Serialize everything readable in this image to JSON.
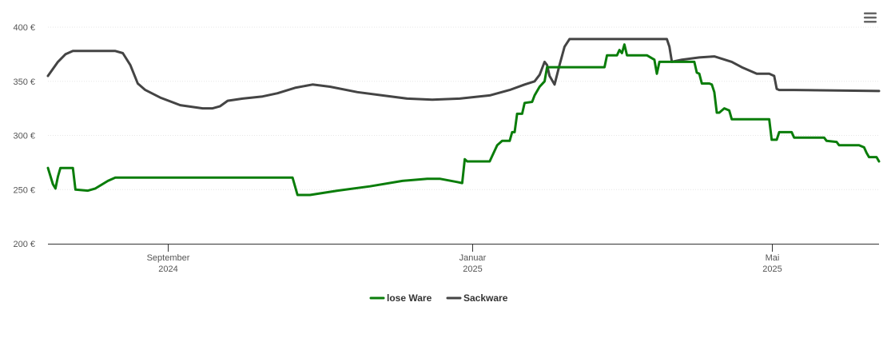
{
  "chart_data": {
    "type": "line",
    "title": "",
    "xlabel": "",
    "ylabel": "",
    "ylim": [
      200,
      400
    ],
    "y_ticks": [
      200,
      250,
      300,
      350,
      400
    ],
    "y_tick_unit": "€",
    "y_tick_labels": [
      "200 €",
      "250 €",
      "300 €",
      "350 €",
      "400 €"
    ],
    "x_range": [
      "2024-07-15",
      "2025-06-13"
    ],
    "x_ticks": [
      {
        "date": "2024-09-01",
        "line1": "September",
        "line2": "2024"
      },
      {
        "date": "2025-01-01",
        "line1": "Januar",
        "line2": "2025"
      },
      {
        "date": "2025-05-01",
        "line1": "Mai",
        "line2": "2025"
      }
    ],
    "grid": true,
    "legend_position": "bottom-center",
    "series": [
      {
        "name": "lose Ware",
        "color": "#0a7d0a",
        "points": [
          [
            "2024-07-15",
            270
          ],
          [
            "2024-07-17",
            255
          ],
          [
            "2024-07-18",
            251
          ],
          [
            "2024-07-19",
            262
          ],
          [
            "2024-07-20",
            270
          ],
          [
            "2024-07-25",
            270
          ],
          [
            "2024-07-26",
            250
          ],
          [
            "2024-07-31",
            249
          ],
          [
            "2024-08-03",
            251
          ],
          [
            "2024-08-08",
            258
          ],
          [
            "2024-08-11",
            261
          ],
          [
            "2024-10-21",
            261
          ],
          [
            "2024-10-23",
            245
          ],
          [
            "2024-10-28",
            245
          ],
          [
            "2024-11-08",
            249
          ],
          [
            "2024-11-21",
            253
          ],
          [
            "2024-12-04",
            258
          ],
          [
            "2024-12-14",
            260
          ],
          [
            "2024-12-19",
            260
          ],
          [
            "2024-12-26",
            257
          ],
          [
            "2024-12-28",
            256
          ],
          [
            "2024-12-29",
            278
          ],
          [
            "2024-12-30",
            276
          ],
          [
            "2025-01-07",
            276
          ],
          [
            "2025-01-08",
            276
          ],
          [
            "2025-01-09",
            281
          ],
          [
            "2025-01-11",
            291
          ],
          [
            "2025-01-13",
            295
          ],
          [
            "2025-01-16",
            295
          ],
          [
            "2025-01-17",
            303
          ],
          [
            "2025-01-18",
            303
          ],
          [
            "2025-01-19",
            320
          ],
          [
            "2025-01-21",
            320
          ],
          [
            "2025-01-22",
            330
          ],
          [
            "2025-01-25",
            331
          ],
          [
            "2025-01-26",
            337
          ],
          [
            "2025-01-28",
            345
          ],
          [
            "2025-01-30",
            350
          ],
          [
            "2025-01-31",
            363
          ],
          [
            "2025-02-23",
            363
          ],
          [
            "2025-02-24",
            374
          ],
          [
            "2025-02-28",
            374
          ],
          [
            "2025-03-01",
            379
          ],
          [
            "2025-03-02",
            376
          ],
          [
            "2025-03-03",
            384
          ],
          [
            "2025-03-04",
            374
          ],
          [
            "2025-03-12",
            374
          ],
          [
            "2025-03-15",
            370
          ],
          [
            "2025-03-16",
            357
          ],
          [
            "2025-03-17",
            368
          ],
          [
            "2025-03-31",
            368
          ],
          [
            "2025-04-01",
            358
          ],
          [
            "2025-04-02",
            357
          ],
          [
            "2025-04-03",
            348
          ],
          [
            "2025-04-06",
            348
          ],
          [
            "2025-04-07",
            347
          ],
          [
            "2025-04-08",
            340
          ],
          [
            "2025-04-09",
            321
          ],
          [
            "2025-04-10",
            321
          ],
          [
            "2025-04-12",
            325
          ],
          [
            "2025-04-14",
            323
          ],
          [
            "2025-04-15",
            315
          ],
          [
            "2025-04-30",
            315
          ],
          [
            "2025-05-01",
            296
          ],
          [
            "2025-05-03",
            296
          ],
          [
            "2025-05-04",
            303
          ],
          [
            "2025-05-09",
            303
          ],
          [
            "2025-05-10",
            298
          ],
          [
            "2025-05-22",
            298
          ],
          [
            "2025-05-23",
            295
          ],
          [
            "2025-05-27",
            294
          ],
          [
            "2025-05-28",
            291
          ],
          [
            "2025-06-05",
            291
          ],
          [
            "2025-06-07",
            289
          ],
          [
            "2025-06-08",
            284
          ],
          [
            "2025-06-09",
            280
          ],
          [
            "2025-06-11",
            280
          ],
          [
            "2025-06-12",
            280
          ],
          [
            "2025-06-13",
            276
          ]
        ]
      },
      {
        "name": "Sackware",
        "color": "#444444",
        "points": [
          [
            "2024-07-15",
            355
          ],
          [
            "2024-07-19",
            368
          ],
          [
            "2024-07-22",
            375
          ],
          [
            "2024-07-25",
            378
          ],
          [
            "2024-08-11",
            378
          ],
          [
            "2024-08-14",
            376
          ],
          [
            "2024-08-17",
            365
          ],
          [
            "2024-08-20",
            348
          ],
          [
            "2024-08-23",
            342
          ],
          [
            "2024-08-29",
            335
          ],
          [
            "2024-09-06",
            328
          ],
          [
            "2024-09-15",
            325
          ],
          [
            "2024-09-19",
            325
          ],
          [
            "2024-09-22",
            327
          ],
          [
            "2024-09-25",
            332
          ],
          [
            "2024-10-01",
            334
          ],
          [
            "2024-10-09",
            336
          ],
          [
            "2024-10-15",
            339
          ],
          [
            "2024-10-22",
            344
          ],
          [
            "2024-10-29",
            347
          ],
          [
            "2024-11-05",
            345
          ],
          [
            "2024-11-16",
            340
          ],
          [
            "2024-11-26",
            337
          ],
          [
            "2024-12-06",
            334
          ],
          [
            "2024-12-16",
            333
          ],
          [
            "2024-12-27",
            334
          ],
          [
            "2025-01-08",
            337
          ],
          [
            "2025-01-16",
            342
          ],
          [
            "2025-01-22",
            347
          ],
          [
            "2025-01-26",
            350
          ],
          [
            "2025-01-28",
            356
          ],
          [
            "2025-01-30",
            368
          ],
          [
            "2025-01-31",
            365
          ],
          [
            "2025-02-01",
            355
          ],
          [
            "2025-02-03",
            347
          ],
          [
            "2025-02-05",
            365
          ],
          [
            "2025-02-07",
            382
          ],
          [
            "2025-02-09",
            389
          ],
          [
            "2025-03-20",
            389
          ],
          [
            "2025-03-21",
            382
          ],
          [
            "2025-03-22",
            368
          ],
          [
            "2025-03-26",
            370
          ],
          [
            "2025-04-02",
            372
          ],
          [
            "2025-04-08",
            373
          ],
          [
            "2025-04-15",
            368
          ],
          [
            "2025-04-19",
            363
          ],
          [
            "2025-04-25",
            357
          ],
          [
            "2025-04-30",
            357
          ],
          [
            "2025-05-02",
            355
          ],
          [
            "2025-05-03",
            343
          ],
          [
            "2025-05-04",
            342
          ],
          [
            "2025-05-10",
            342
          ],
          [
            "2025-06-13",
            341
          ]
        ]
      }
    ]
  },
  "ui": {
    "menu_icon": "hamburger-menu-icon"
  }
}
